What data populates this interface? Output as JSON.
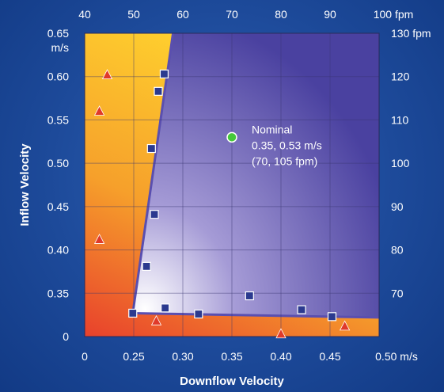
{
  "chart_data": {
    "type": "scatter",
    "title": "",
    "xlabel": "Downflow Velocity",
    "ylabel": "Inflow Velocity",
    "xlim": [
      0.2,
      0.5
    ],
    "ylim": [
      0.3,
      0.65
    ],
    "grid": true,
    "x_ticks": [
      {
        "value": 0.2,
        "label": "0"
      },
      {
        "value": 0.25,
        "label": "0.25"
      },
      {
        "value": 0.3,
        "label": "0.30"
      },
      {
        "value": 0.35,
        "label": "0.35"
      },
      {
        "value": 0.4,
        "label": "0.40"
      },
      {
        "value": 0.45,
        "label": "0.45"
      },
      {
        "value": 0.5,
        "label": "0.50 m/s"
      }
    ],
    "y_ticks": [
      {
        "value": 0.3,
        "label": "0"
      },
      {
        "value": 0.35,
        "label": "0.35"
      },
      {
        "value": 0.4,
        "label": "0.40"
      },
      {
        "value": 0.45,
        "label": "0.45"
      },
      {
        "value": 0.5,
        "label": "0.50"
      },
      {
        "value": 0.55,
        "label": "0.55"
      },
      {
        "value": 0.6,
        "label": "0.60"
      },
      {
        "value": 0.65,
        "label": "0.65"
      }
    ],
    "y_unit_label": "m/s",
    "top_ticks": [
      {
        "value": 0.2,
        "label": "40"
      },
      {
        "value": 0.25,
        "label": "50"
      },
      {
        "value": 0.3,
        "label": "60"
      },
      {
        "value": 0.35,
        "label": "70"
      },
      {
        "value": 0.4,
        "label": "80"
      },
      {
        "value": 0.45,
        "label": "90"
      },
      {
        "value": 0.5,
        "label": "100 fpm"
      }
    ],
    "right_ticks": [
      {
        "value": 0.65,
        "label": "130 fpm"
      },
      {
        "value": 0.6,
        "label": "120"
      },
      {
        "value": 0.55,
        "label": "110"
      },
      {
        "value": 0.5,
        "label": "100"
      },
      {
        "value": 0.45,
        "label": "90"
      },
      {
        "value": 0.4,
        "label": "80"
      },
      {
        "value": 0.35,
        "label": "70"
      }
    ],
    "safe_region": [
      [
        0.249,
        0.327
      ],
      [
        0.29,
        0.65
      ],
      [
        0.5,
        0.65
      ],
      [
        0.5,
        0.322
      ]
    ],
    "series": [
      {
        "marker": "square",
        "color": "#2b3a8f",
        "points": [
          [
            0.249,
            0.327
          ],
          [
            0.263,
            0.381
          ],
          [
            0.271,
            0.441
          ],
          [
            0.268,
            0.517
          ],
          [
            0.275,
            0.583
          ],
          [
            0.281,
            0.603
          ],
          [
            0.282,
            0.333
          ],
          [
            0.316,
            0.326
          ],
          [
            0.368,
            0.347
          ],
          [
            0.421,
            0.331
          ],
          [
            0.452,
            0.323
          ]
        ]
      },
      {
        "marker": "triangle",
        "color": "#e03a2a",
        "points": [
          [
            0.215,
            0.56
          ],
          [
            0.223,
            0.602
          ],
          [
            0.215,
            0.412
          ],
          [
            0.273,
            0.318
          ],
          [
            0.4,
            0.303
          ],
          [
            0.465,
            0.312
          ]
        ]
      }
    ],
    "nominal": {
      "x": 0.35,
      "y": 0.53,
      "color": "#45c83a",
      "label_lines": [
        "Nominal",
        "0.35, 0.53 m/s",
        "(70, 105 fpm)"
      ]
    }
  }
}
